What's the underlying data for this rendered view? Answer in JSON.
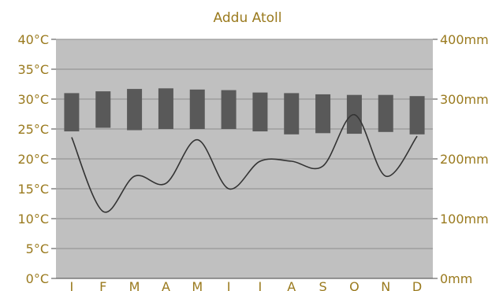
{
  "chart_data": {
    "type": "bar+line",
    "title": "Addu Atoll",
    "categories": [
      "J",
      "F",
      "M",
      "A",
      "M",
      "J",
      "J",
      "A",
      "S",
      "O",
      "N",
      "D"
    ],
    "temperature_range": {
      "unit": "°C",
      "low": [
        24.6,
        25.2,
        24.8,
        25.0,
        25.0,
        25.0,
        24.6,
        24.1,
        24.3,
        24.2,
        24.5,
        24.1
      ],
      "high": [
        31.0,
        31.3,
        31.7,
        31.8,
        31.6,
        31.5,
        31.1,
        31.0,
        30.8,
        30.7,
        30.7,
        30.5
      ]
    },
    "precipitation": {
      "unit": "mm",
      "values": [
        236,
        112,
        171,
        159,
        232,
        150,
        196,
        196,
        188,
        274,
        171,
        238
      ]
    },
    "y_left": {
      "ticks": [
        "0°C",
        "5°C",
        "10°C",
        "15°C",
        "20°C",
        "25°C",
        "30°C",
        "35°C",
        "40°C"
      ],
      "range": [
        0,
        40
      ]
    },
    "y_right": {
      "ticks": [
        "0mm",
        "100mm",
        "200mm",
        "300mm",
        "400mm"
      ],
      "range": [
        0,
        400
      ]
    },
    "grid": true,
    "colors": {
      "plot_bg": "#c0c0c0",
      "bar": "#595959",
      "line": "#333333",
      "label": "#9a7a1e"
    }
  }
}
